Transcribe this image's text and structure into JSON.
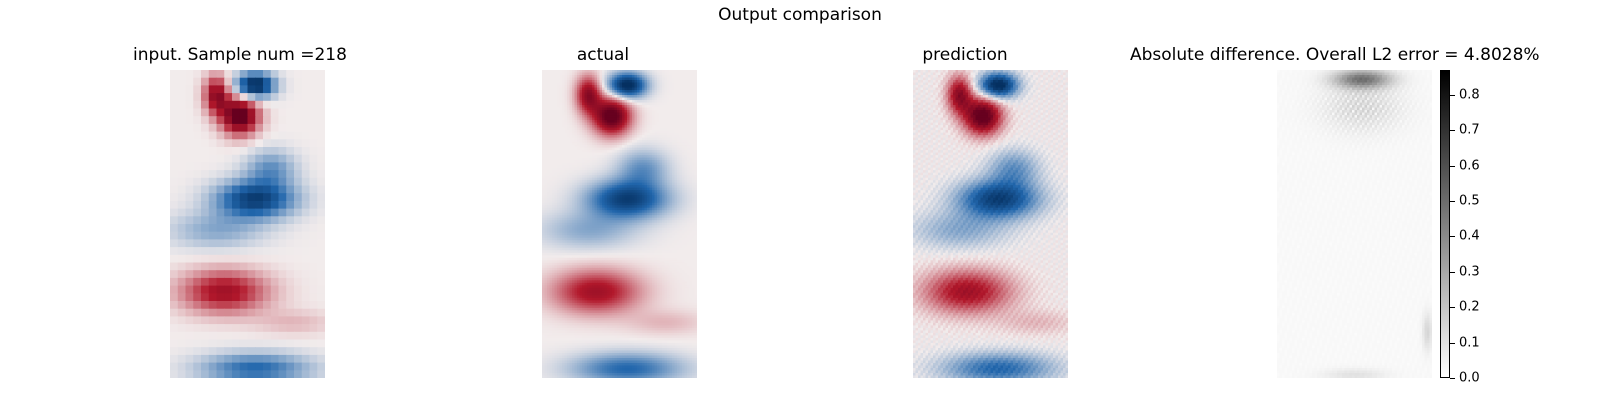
{
  "figure": {
    "suptitle": "Output comparison"
  },
  "panels": [
    {
      "id": "input",
      "title": "input. Sample num =218",
      "kind": "vorticity",
      "coarse": true,
      "noise": false
    },
    {
      "id": "actual",
      "title": "actual",
      "kind": "vorticity",
      "coarse": false,
      "noise": false
    },
    {
      "id": "prediction",
      "title": "prediction",
      "kind": "vorticity",
      "coarse": false,
      "noise": true
    },
    {
      "id": "difference",
      "title": "Absolute difference. Overall L2 error = 4.8028%",
      "kind": "abs_error"
    }
  ],
  "chart_data": {
    "type": "heatmap",
    "title": "Output comparison",
    "diverging_colormap": {
      "negative": "#053061",
      "mid": "#f2ecec",
      "positive": "#67001f"
    },
    "colorbar": {
      "colormap": "Greys",
      "range": [
        0.0,
        0.87
      ],
      "ticks": [
        0.0,
        0.1,
        0.2,
        0.3,
        0.4,
        0.5,
        0.6,
        0.7,
        0.8
      ],
      "tick_labels": [
        "0.0",
        "0.1",
        "0.2",
        "0.3",
        "0.4",
        "0.5",
        "0.6",
        "0.7",
        "0.8"
      ]
    },
    "overall_l2_error_percent": 4.8028,
    "sample_num": 218
  }
}
